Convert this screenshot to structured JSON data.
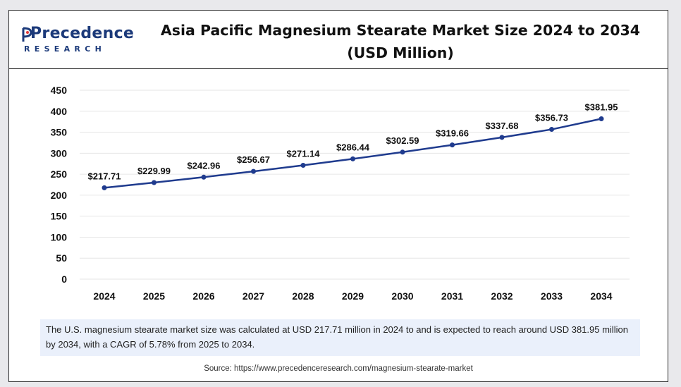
{
  "logo": {
    "name": "Precedence",
    "sub": "RESEARCH"
  },
  "title_line1": "Asia Pacific Magnesium Stearate Market Size 2024 to 2034",
  "title_line2": "(USD Million)",
  "note": "The U.S. magnesium stearate market size was calculated at USD 217.71 million in 2024 to and is expected to reach around USD 381.95 million by 2034, with a CAGR of 5.78% from 2025 to 2034.",
  "source": "Source: https://www.precedenceresearch.com/magnesium-stearate-market",
  "colors": {
    "line": "#1f3b8e",
    "brand": "#1c3a7a",
    "note_bg": "#eaf0fb"
  },
  "chart_data": {
    "type": "line",
    "title": "Asia Pacific Magnesium Stearate Market Size 2024 to 2034 (USD Million)",
    "xlabel": "",
    "ylabel": "",
    "categories": [
      "2024",
      "2025",
      "2026",
      "2027",
      "2028",
      "2029",
      "2030",
      "2031",
      "2032",
      "2033",
      "2034"
    ],
    "values": [
      217.71,
      229.99,
      242.96,
      256.67,
      271.14,
      286.44,
      302.59,
      319.66,
      337.68,
      356.73,
      381.95
    ],
    "data_labels": [
      "$217.71",
      "$229.99",
      "$242.96",
      "$256.67",
      "$271.14",
      "$286.44",
      "$302.59",
      "$319.66",
      "$337.68",
      "$356.73",
      "$381.95"
    ],
    "ylim": [
      0,
      450
    ],
    "yticks": [
      0,
      50,
      100,
      150,
      200,
      250,
      300,
      350,
      400,
      450
    ],
    "grid": true,
    "legend": "none"
  }
}
